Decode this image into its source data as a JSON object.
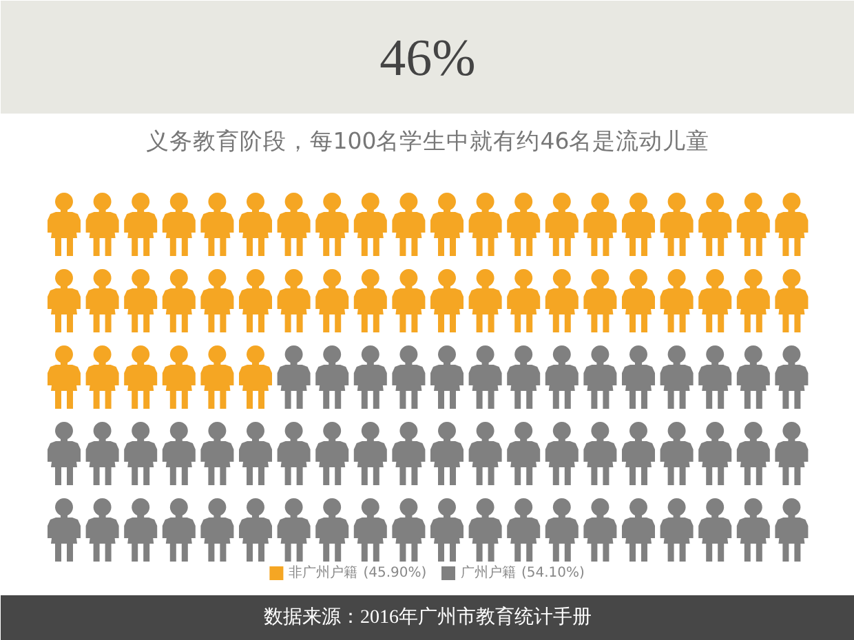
{
  "chart_data": {
    "type": "other",
    "title": "46%",
    "subtitle": "义务教育阶段，每100名学生中就有约46名是流动儿童",
    "series": [
      {
        "name": "非广州户籍",
        "color": "#f5a623",
        "values": [
          45.9
        ],
        "value_labels": [
          "(45.90%)"
        ]
      },
      {
        "name": "广州户籍",
        "color": "#808080",
        "values": [
          54.1
        ],
        "value_labels": [
          "(54.10%)"
        ]
      }
    ],
    "legend": "bottom",
    "annotations": [
      "数据来源：2016年广州市教育统计手册"
    ]
  }
}
